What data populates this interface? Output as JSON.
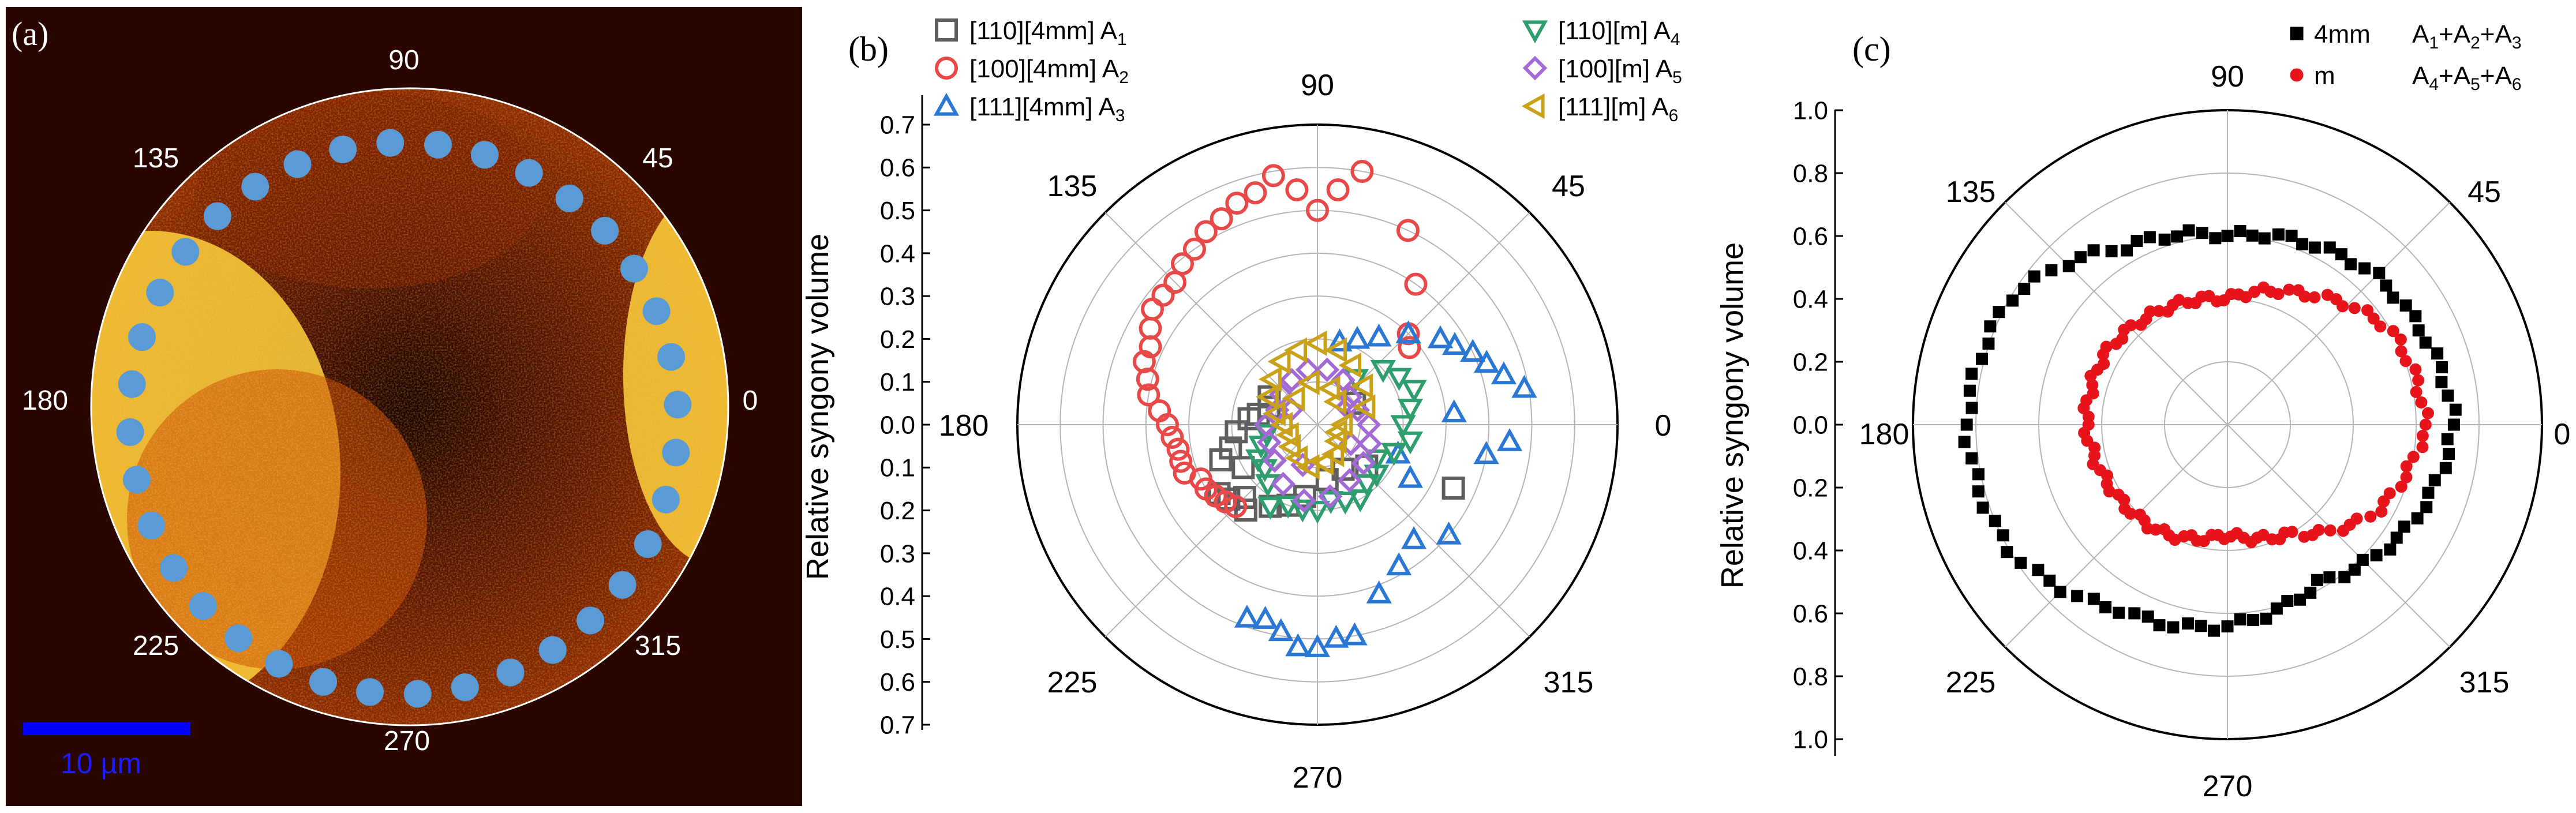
{
  "panel_a": {
    "label": "(a)",
    "angle_labels": [
      "0",
      "45",
      "90",
      "135",
      "180",
      "225",
      "270",
      "315"
    ],
    "scale_bar_label": "10 µm",
    "scale_bar_color": "#0000ff",
    "background_color": "#3a0a00",
    "hot_color": "#ffe45a",
    "marker_color": "#5b9bd5",
    "measurement_points": 36
  },
  "chart_data": [
    {
      "type": "scatter",
      "coordinate_system": "polar",
      "panel_label": "(b)",
      "ylabel": "Relative syngony volume",
      "radial_range": [
        0,
        0.7
      ],
      "radial_ticks": [
        "0.0",
        "0.1",
        "0.2",
        "0.3",
        "0.4",
        "0.5",
        "0.6",
        "0.7"
      ],
      "angle_labels": [
        "0",
        "45",
        "90",
        "135",
        "180",
        "225",
        "270",
        "315"
      ],
      "grid": true,
      "legend_placement": "top",
      "series": [
        {
          "name": "[110][4mm] A",
          "subscript": "1",
          "marker": "square",
          "color": "#5f5f5f",
          "points": [
            [
              150,
              0.13
            ],
            [
              160,
              0.12
            ],
            [
              170,
              0.14
            ],
            [
              175,
              0.16
            ],
            [
              185,
              0.19
            ],
            [
              195,
              0.21
            ],
            [
              200,
              0.24
            ],
            [
              210,
              0.2
            ],
            [
              215,
              0.28
            ],
            [
              220,
              0.27
            ],
            [
              225,
              0.24
            ],
            [
              230,
              0.26
            ],
            [
              240,
              0.22
            ],
            [
              250,
              0.2
            ],
            [
              260,
              0.17
            ],
            [
              280,
              0.13
            ],
            [
              300,
              0.12
            ],
            [
              320,
              0.15
            ],
            [
              335,
              0.35
            ],
            [
              30,
              0.1
            ]
          ]
        },
        {
          "name": "[100][4mm] A",
          "subscript": "2",
          "marker": "circle",
          "color": "#e94848",
          "points": [
            [
              80,
              0.6
            ],
            [
              85,
              0.55
            ],
            [
              90,
              0.5
            ],
            [
              95,
              0.55
            ],
            [
              100,
              0.59
            ],
            [
              105,
              0.56
            ],
            [
              110,
              0.55
            ],
            [
              115,
              0.53
            ],
            [
              120,
              0.52
            ],
            [
              125,
              0.5
            ],
            [
              130,
              0.49
            ],
            [
              135,
              0.47
            ],
            [
              140,
              0.47
            ],
            [
              145,
              0.47
            ],
            [
              150,
              0.45
            ],
            [
              155,
              0.43
            ],
            [
              160,
              0.43
            ],
            [
              165,
              0.41
            ],
            [
              170,
              0.4
            ],
            [
              175,
              0.37
            ],
            [
              180,
              0.35
            ],
            [
              185,
              0.34
            ],
            [
              190,
              0.33
            ],
            [
              195,
              0.33
            ],
            [
              200,
              0.33
            ],
            [
              205,
              0.3
            ],
            [
              210,
              0.3
            ],
            [
              215,
              0.29
            ],
            [
              220,
              0.28
            ],
            [
              225,
              0.27
            ],
            [
              65,
              0.5
            ],
            [
              55,
              0.4
            ],
            [
              45,
              0.3
            ],
            [
              40,
              0.28
            ]
          ]
        },
        {
          "name": "[111][4mm] A",
          "subscript": "3",
          "marker": "triangle-up",
          "color": "#2b78d4",
          "points": [
            [
              10,
              0.49
            ],
            [
              15,
              0.45
            ],
            [
              20,
              0.42
            ],
            [
              25,
              0.4
            ],
            [
              30,
              0.37
            ],
            [
              35,
              0.35
            ],
            [
              45,
              0.3
            ],
            [
              55,
              0.25
            ],
            [
              65,
              0.22
            ],
            [
              75,
              0.2
            ],
            [
              250,
              0.48
            ],
            [
              255,
              0.47
            ],
            [
              260,
              0.49
            ],
            [
              265,
              0.52
            ],
            [
              270,
              0.52
            ],
            [
              275,
              0.5
            ],
            [
              280,
              0.5
            ],
            [
              290,
              0.42
            ],
            [
              300,
              0.38
            ],
            [
              310,
              0.35
            ],
            [
              320,
              0.4
            ],
            [
              350,
              0.4
            ],
            [
              355,
              0.45
            ],
            [
              5,
              0.32
            ],
            [
              340,
              0.2
            ],
            [
              330,
              0.25
            ]
          ]
        },
        {
          "name": "[110][m] A",
          "subscript": "4",
          "marker": "triangle-down",
          "color": "#2f9e6e",
          "points": [
            [
              0,
              0.2
            ],
            [
              10,
              0.22
            ],
            [
              20,
              0.24
            ],
            [
              30,
              0.22
            ],
            [
              40,
              0.2
            ],
            [
              50,
              0.14
            ],
            [
              300,
              0.2
            ],
            [
              310,
              0.18
            ],
            [
              320,
              0.18
            ],
            [
              330,
              0.16
            ],
            [
              340,
              0.19
            ],
            [
              350,
              0.22
            ],
            [
              260,
              0.2
            ],
            [
              250,
              0.2
            ],
            [
              240,
              0.22
            ],
            [
              230,
              0.18
            ],
            [
              220,
              0.16
            ],
            [
              210,
              0.16
            ],
            [
              200,
              0.14
            ],
            [
              190,
              0.12
            ],
            [
              270,
              0.2
            ],
            [
              280,
              0.18
            ],
            [
              290,
              0.19
            ]
          ]
        },
        {
          "name": "[100][m] A",
          "subscript": "5",
          "marker": "diamond",
          "color": "#a36ad6",
          "points": [
            [
              0,
              0.12
            ],
            [
              20,
              0.1
            ],
            [
              40,
              0.1
            ],
            [
              60,
              0.12
            ],
            [
              80,
              0.13
            ],
            [
              100,
              0.13
            ],
            [
              120,
              0.12
            ],
            [
              140,
              0.11
            ],
            [
              160,
              0.1
            ],
            [
              180,
              0.12
            ],
            [
              200,
              0.12
            ],
            [
              220,
              0.13
            ],
            [
              240,
              0.16
            ],
            [
              260,
              0.18
            ],
            [
              280,
              0.17
            ],
            [
              300,
              0.15
            ],
            [
              320,
              0.14
            ],
            [
              340,
              0.13
            ],
            [
              30,
              0.08
            ],
            [
              150,
              0.07
            ],
            [
              250,
              0.1
            ],
            [
              330,
              0.09
            ]
          ]
        },
        {
          "name": "[111][m] A",
          "subscript": "6",
          "marker": "triangle-left",
          "color": "#c9a21a",
          "points": [
            [
              0,
              0.06
            ],
            [
              20,
              0.12
            ],
            [
              40,
              0.14
            ],
            [
              60,
              0.16
            ],
            [
              75,
              0.18
            ],
            [
              90,
              0.19
            ],
            [
              105,
              0.18
            ],
            [
              120,
              0.17
            ],
            [
              135,
              0.15
            ],
            [
              150,
              0.13
            ],
            [
              165,
              0.1
            ],
            [
              180,
              0.08
            ],
            [
              200,
              0.07
            ],
            [
              220,
              0.08
            ],
            [
              240,
              0.09
            ],
            [
              260,
              0.1
            ],
            [
              280,
              0.09
            ],
            [
              300,
              0.08
            ],
            [
              320,
              0.06
            ],
            [
              340,
              0.05
            ],
            [
              100,
              0.1
            ],
            [
              70,
              0.09
            ],
            [
              130,
              0.08
            ],
            [
              50,
              0.07
            ]
          ]
        }
      ]
    },
    {
      "type": "scatter",
      "coordinate_system": "polar",
      "panel_label": "(c)",
      "ylabel": "Relative syngony volume",
      "radial_range": [
        0,
        1.0
      ],
      "radial_ticks": [
        "0.0",
        "0.2",
        "0.4",
        "0.6",
        "0.8",
        "1.0"
      ],
      "angle_labels": [
        "0",
        "45",
        "90",
        "135",
        "180",
        "225",
        "270",
        "315"
      ],
      "grid": true,
      "legend_placement": "top-right",
      "series": [
        {
          "name": "4mm",
          "formula": [
            "A",
            "1",
            "+A",
            "2",
            "+A",
            "3"
          ],
          "marker": "square",
          "color": "#000000",
          "radius_profile": [
            [
              0,
              0.72
            ],
            [
              30,
              0.68
            ],
            [
              45,
              0.67
            ],
            [
              60,
              0.64
            ],
            [
              90,
              0.6
            ],
            [
              120,
              0.65
            ],
            [
              150,
              0.8
            ],
            [
              180,
              0.83
            ],
            [
              210,
              0.8
            ],
            [
              240,
              0.68
            ],
            [
              270,
              0.64
            ],
            [
              300,
              0.58
            ],
            [
              330,
              0.66
            ],
            [
              360,
              0.72
            ]
          ]
        },
        {
          "name": "m",
          "formula": [
            "A",
            "4",
            "+A",
            "5",
            "+A",
            "6"
          ],
          "marker": "circle",
          "color": "#e8141c",
          "radius_profile": [
            [
              0,
              0.63
            ],
            [
              30,
              0.6
            ],
            [
              60,
              0.48
            ],
            [
              90,
              0.4
            ],
            [
              120,
              0.42
            ],
            [
              150,
              0.45
            ],
            [
              180,
              0.45
            ],
            [
              210,
              0.42
            ],
            [
              240,
              0.4
            ],
            [
              270,
              0.35
            ],
            [
              300,
              0.4
            ],
            [
              330,
              0.55
            ],
            [
              360,
              0.63
            ]
          ]
        }
      ]
    }
  ]
}
